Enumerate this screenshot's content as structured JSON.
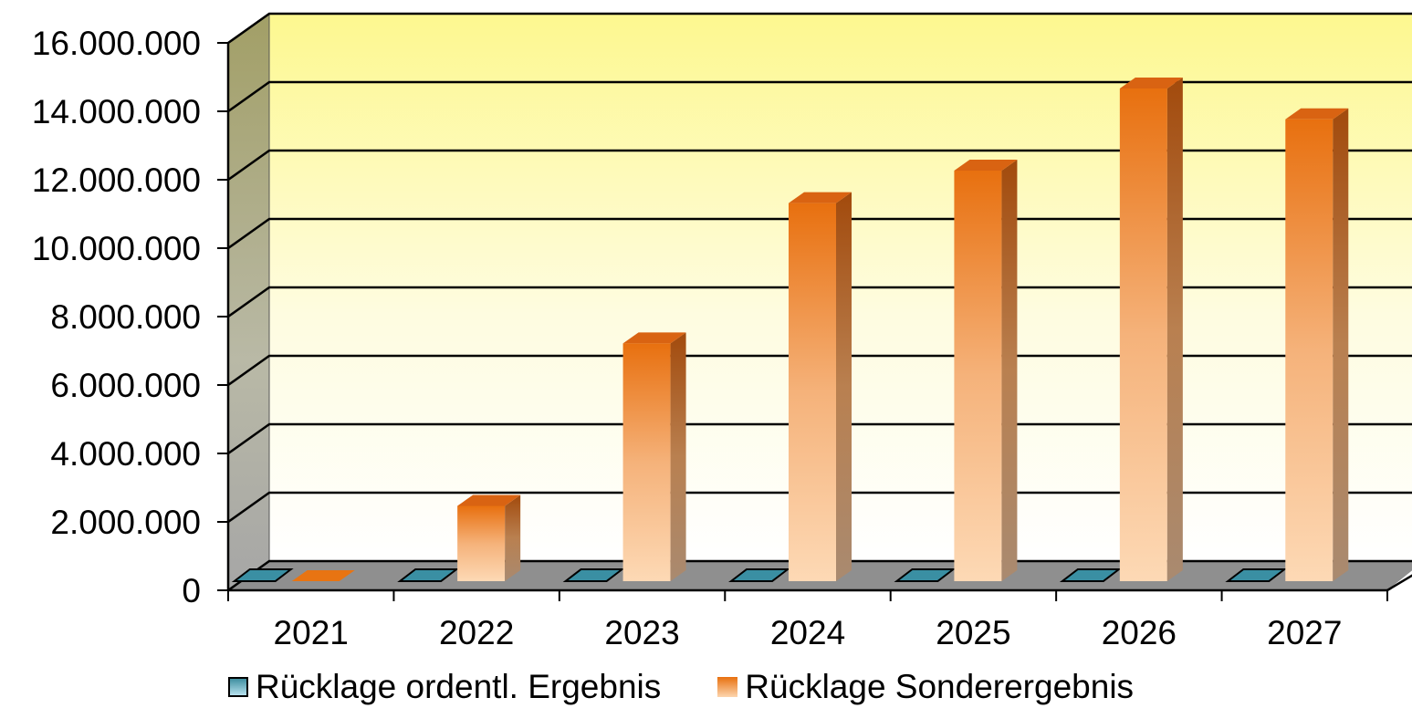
{
  "chart_data": {
    "type": "bar",
    "categories": [
      "2021",
      "2022",
      "2023",
      "2024",
      "2025",
      "2026",
      "2027"
    ],
    "series": [
      {
        "name": "Rücklage ordentl. Ergebnis",
        "values": [
          0,
          0,
          0,
          0,
          0,
          0,
          0
        ],
        "color": "#3a8fa3"
      },
      {
        "name": "Rücklage Sonderergebnis",
        "values": [
          0,
          2200000,
          6950000,
          11050000,
          12000000,
          14400000,
          13500000
        ],
        "color": "#e87412"
      }
    ],
    "yticks": [
      "0",
      "2.000.000",
      "4.000.000",
      "6.000.000",
      "8.000.000",
      "10.000.000",
      "12.000.000",
      "14.000.000",
      "16.000.000"
    ],
    "ylim": [
      0,
      16000000
    ],
    "grid": true,
    "legend": "bottom",
    "style": "3d-column"
  }
}
